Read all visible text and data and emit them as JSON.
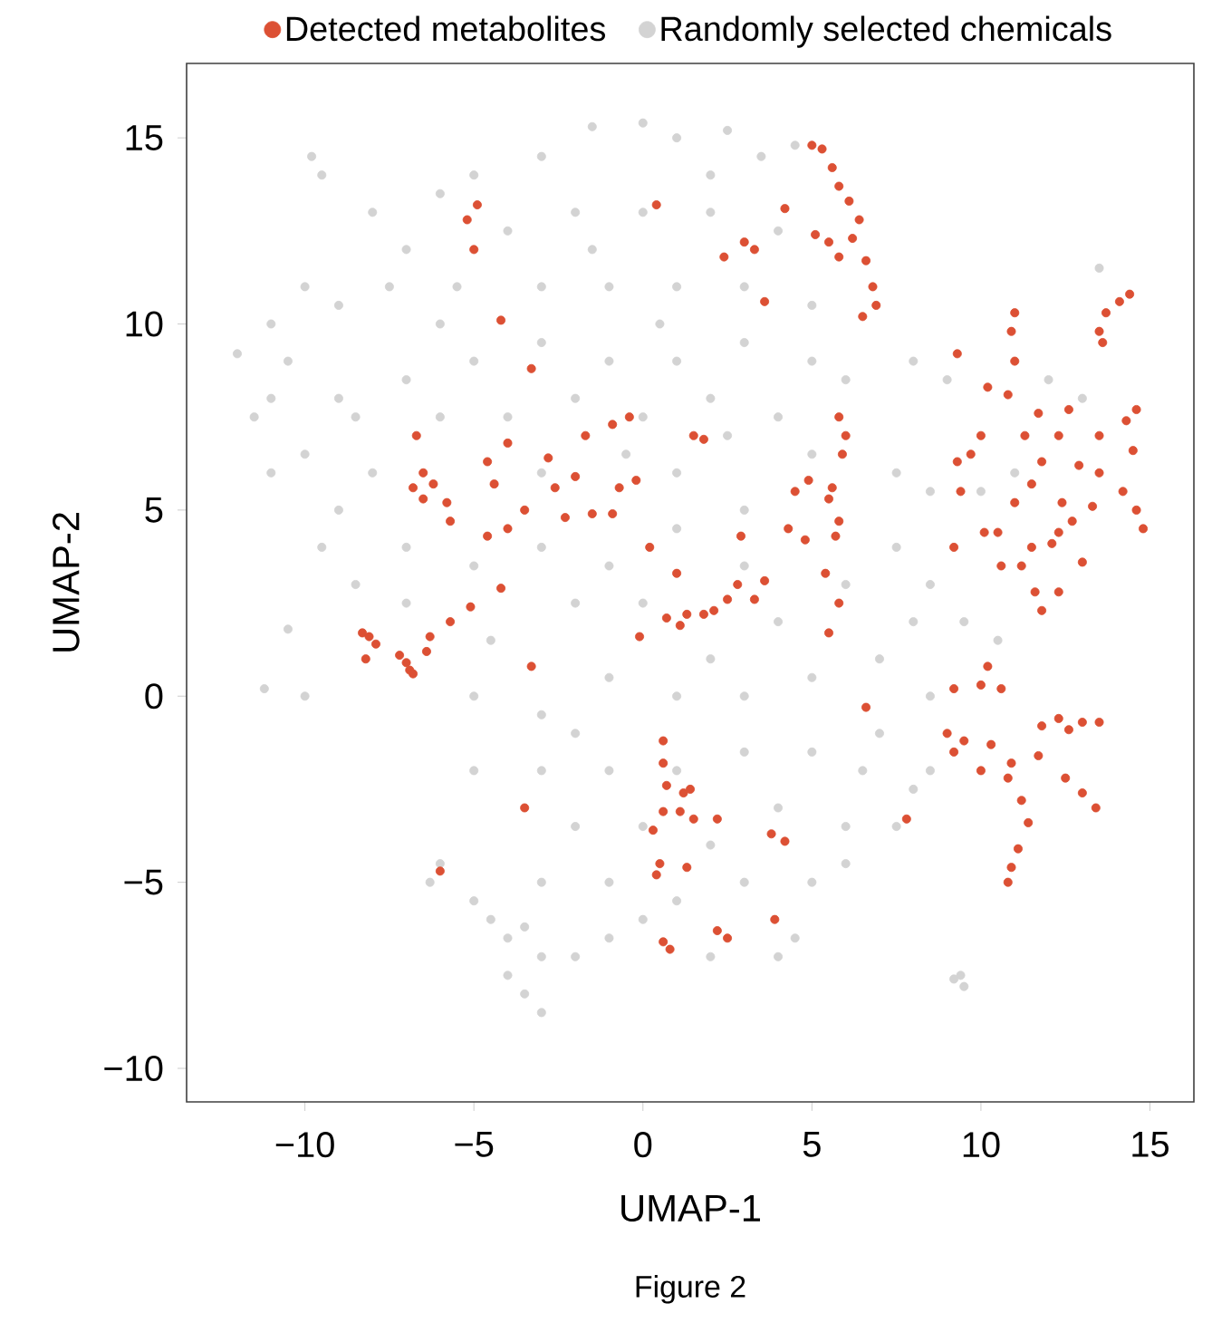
{
  "chart_data": {
    "type": "scatter",
    "xlabel": "UMAP-1",
    "ylabel": "UMAP-2",
    "annotations": [
      "Figure 2"
    ],
    "xlim": [
      -13.5,
      16.3
    ],
    "ylim": [
      -10.9,
      17.0
    ],
    "xticks": [
      {
        "value": -10,
        "label": "−10"
      },
      {
        "value": -5,
        "label": "−5"
      },
      0,
      5,
      10,
      15
    ],
    "yticks": [
      {
        "value": -10,
        "label": "−10"
      },
      {
        "value": -5,
        "label": "−5"
      },
      0,
      5,
      10,
      15
    ],
    "grid": false,
    "legend": "top",
    "marker": "circle",
    "series": [
      {
        "name": "Detected metabolites",
        "color": "#dc5034",
        "x": [
          5,
          5.3,
          5.6,
          5.8,
          6.1,
          6.4,
          6.2,
          5.8,
          6.6,
          6.8,
          6.9,
          6.5,
          5.1,
          4.2,
          5.5,
          3,
          3.3,
          2.4,
          3.6,
          0.4,
          -4.9,
          -5.2,
          -5,
          -4.2,
          -3.3,
          -6.7,
          -6.5,
          -6.2,
          -6.8,
          -5.8,
          -6.5,
          -5.7,
          -4.6,
          -4.4,
          -4,
          -4.6,
          -4,
          -3.5,
          -2.8,
          -2.6,
          -2,
          -1.7,
          -0.9,
          -0.4,
          -1.5,
          -0.9,
          -2.3,
          -0.7,
          -0.2,
          1.5,
          1.8,
          -8.3,
          -8.1,
          -7.9,
          -8.2,
          -7.2,
          -7,
          -6.9,
          -6.8,
          -6.4,
          -6.3,
          -5.7,
          -5.1,
          -4.2,
          -3.3,
          1.1,
          1.3,
          1.8,
          2.1,
          2.5,
          2.8,
          3.3,
          3.6,
          1,
          2.9,
          -0.1,
          0.7,
          0.2,
          4.5,
          4.9,
          5.5,
          5.6,
          4.3,
          4.8,
          5.7,
          5.8,
          5.4,
          5.9,
          6,
          5.8,
          5.8,
          5.5,
          6.6,
          0.6,
          0.6,
          0.7,
          1.2,
          1.4,
          1.1,
          0.6,
          0.3,
          1.5,
          2.2,
          0.5,
          0.4,
          1.3,
          2.2,
          2.5,
          3.9,
          0.8,
          0.6,
          3.8,
          4.2,
          -6,
          -3.5,
          7.8,
          11,
          10.9,
          11,
          9.3,
          13.5,
          13.7,
          14.1,
          14.4,
          13.6,
          10.2,
          10.8,
          11.7,
          12.3,
          12.6,
          10,
          9.7,
          9.3,
          11.3,
          11.8,
          12.9,
          13.5,
          14.3,
          14.6,
          14.5,
          13.5,
          14.2,
          14.6,
          14.8,
          13.3,
          12.7,
          12.1,
          11.5,
          11.2,
          10.6,
          10.5,
          11,
          11.5,
          12.4,
          13,
          12.3,
          11.6,
          11.8,
          10.1,
          9.4,
          9.2,
          12.3,
          10.2,
          10,
          10.6,
          9.2,
          9.5,
          9,
          10.3,
          10,
          10.9,
          11.2,
          10.8,
          12.3,
          12.6,
          13,
          13.5,
          11.8,
          11.7,
          12.5,
          13,
          13.4,
          11.4,
          11.1,
          10.9,
          10.8,
          9.2
        ],
        "values": [
          14.8,
          14.7,
          14.2,
          13.7,
          13.3,
          12.8,
          12.3,
          11.8,
          11.7,
          11,
          10.5,
          10.2,
          12.4,
          13.1,
          12.2,
          12.2,
          12,
          11.8,
          10.6,
          13.2,
          13.2,
          12.8,
          12,
          10.1,
          8.8,
          7,
          6,
          5.7,
          5.6,
          5.2,
          5.3,
          4.7,
          6.3,
          5.7,
          6.8,
          4.3,
          4.5,
          5,
          6.4,
          5.6,
          5.9,
          7,
          7.3,
          7.5,
          4.9,
          4.9,
          4.8,
          5.6,
          5.8,
          7,
          6.9,
          1.7,
          1.6,
          1.4,
          1,
          1.1,
          0.9,
          0.7,
          0.6,
          1.2,
          1.6,
          2,
          2.4,
          2.9,
          0.8,
          1.9,
          2.2,
          2.2,
          2.3,
          2.6,
          3,
          2.6,
          3.1,
          3.3,
          4.3,
          1.6,
          2.1,
          4,
          5.5,
          5.8,
          5.3,
          5.6,
          4.5,
          4.2,
          4.3,
          4.7,
          3.3,
          6.5,
          7,
          7.5,
          2.5,
          1.7,
          -0.3,
          -1.2,
          -1.8,
          -2.4,
          -2.6,
          -2.5,
          -3.1,
          -3.1,
          -3.6,
          -3.3,
          -3.3,
          -4.5,
          -4.8,
          -4.6,
          -6.3,
          -6.5,
          -6,
          -6.8,
          -6.6,
          -3.7,
          -3.9,
          -4.7,
          -3,
          -3.3,
          10.3,
          9.8,
          9,
          9.2,
          9.8,
          10.3,
          10.6,
          10.8,
          9.5,
          8.3,
          8.1,
          7.6,
          7,
          7.7,
          7,
          6.5,
          6.3,
          7,
          6.3,
          6.2,
          7,
          7.4,
          7.7,
          6.6,
          6,
          5.5,
          5,
          4.5,
          5.1,
          4.7,
          4.1,
          4,
          3.5,
          3.5,
          4.4,
          5.2,
          5.7,
          5.2,
          3.6,
          2.8,
          2.8,
          2.3,
          4.4,
          5.5,
          4,
          4.4,
          0.8,
          0.3,
          0.2,
          -1.5,
          -1.2,
          -1,
          -1.3,
          -2,
          -1.8,
          -2.8,
          -2.2,
          -0.6,
          -0.9,
          -0.7,
          -0.7,
          -0.8,
          -1.6,
          -2.2,
          -2.6,
          -3,
          -3.4,
          -4.1,
          -4.6,
          -5,
          0.2
        ]
      },
      {
        "name": "Randomly selected chemicals",
        "color": "#d3d3d3",
        "x": [
          -9.8,
          -9.5,
          -8,
          -6,
          -5,
          -3,
          -1.5,
          0,
          1,
          2.5,
          3.5,
          4.5,
          -7,
          -4,
          -2,
          0,
          2,
          4,
          -10,
          -11,
          -12,
          -10.5,
          -9,
          -7.5,
          -5.5,
          -3,
          -1,
          1,
          3,
          5,
          -11,
          -9,
          -7,
          -5,
          -3,
          -1,
          1,
          3,
          5,
          -10,
          -8,
          -6,
          -4,
          -2,
          0,
          2,
          4,
          6,
          -9,
          -7,
          -5,
          -3,
          -1,
          1,
          3,
          5,
          -7,
          -4.5,
          -2,
          0,
          2,
          4,
          6,
          -11.2,
          -10.5,
          -10,
          -5,
          -3,
          -1,
          1,
          3,
          5,
          7,
          8,
          7.5,
          7.5,
          8.5,
          9,
          8.5,
          8.5,
          9.5,
          10.5,
          10,
          11,
          12,
          13,
          13.5,
          8,
          -1,
          1,
          3,
          5,
          7,
          8.5,
          -2,
          0,
          2,
          4,
          6,
          8,
          -3,
          -1,
          1,
          3,
          5,
          -5,
          -4.5,
          -4,
          -3.5,
          -3,
          -4,
          -3.5,
          -3,
          -2,
          -1,
          0,
          2,
          4,
          -6,
          -6.3,
          9.4,
          9.5,
          9.2,
          -8.5,
          -9.5,
          -11,
          -11.5,
          -5,
          -3,
          1,
          -3,
          -6,
          2,
          -8.5,
          6.5,
          6,
          4.5,
          7.5,
          -2,
          3,
          -1.5,
          0.5,
          2.5,
          -0.5
        ],
        "values": [
          14.5,
          14,
          13,
          13.5,
          14,
          14.5,
          15.3,
          15.4,
          15,
          15.2,
          14.5,
          14.8,
          12,
          12.5,
          13,
          13,
          13,
          12.5,
          11,
          10,
          9.2,
          9,
          10.5,
          11,
          11,
          11,
          11,
          11,
          11,
          10.5,
          8,
          8,
          8.5,
          9,
          9.5,
          9,
          9,
          9.5,
          9,
          6.5,
          6,
          7.5,
          7.5,
          8,
          7.5,
          8,
          7.5,
          8.5,
          5,
          4,
          3.5,
          4,
          3.5,
          4.5,
          5,
          6.5,
          2.5,
          1.5,
          2.5,
          2.5,
          1,
          2,
          3,
          0.2,
          1.8,
          0,
          0,
          -0.5,
          0.5,
          0,
          0,
          0.5,
          1,
          2,
          4,
          6,
          5.5,
          8.5,
          3,
          0,
          2,
          1.5,
          5.5,
          6,
          8.5,
          8,
          11.5,
          9,
          -2,
          -2,
          -1.5,
          -1.5,
          -1,
          -2,
          -3.5,
          -3.5,
          -4,
          -3,
          -3.5,
          -2.5,
          -5,
          -5,
          -5.5,
          -5,
          -5,
          -5.5,
          -6,
          -6.5,
          -6.2,
          -7,
          -7.5,
          -8,
          -8.5,
          -7,
          -6.5,
          -6,
          -7,
          -7,
          -4.5,
          -5,
          -7.5,
          -7.8,
          -7.6,
          3,
          4,
          6,
          7.5,
          -2,
          -2,
          6,
          6,
          10,
          14,
          7.5,
          -2,
          -4.5,
          -6.5,
          -3.5,
          -1,
          3.5,
          12,
          10,
          7,
          6.5
        ]
      }
    ]
  }
}
